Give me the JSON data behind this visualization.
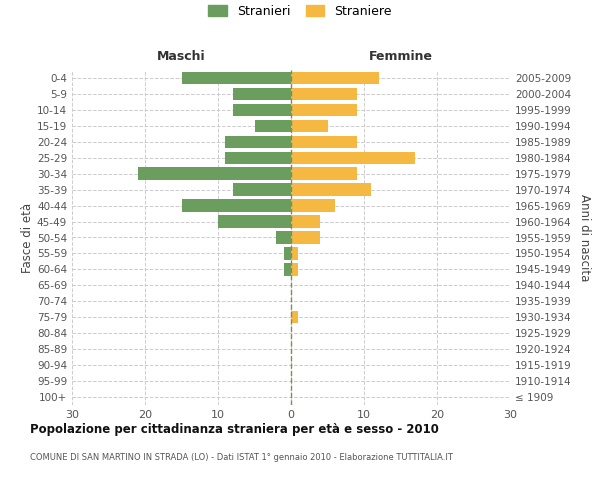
{
  "age_groups": [
    "100+",
    "95-99",
    "90-94",
    "85-89",
    "80-84",
    "75-79",
    "70-74",
    "65-69",
    "60-64",
    "55-59",
    "50-54",
    "45-49",
    "40-44",
    "35-39",
    "30-34",
    "25-29",
    "20-24",
    "15-19",
    "10-14",
    "5-9",
    "0-4"
  ],
  "birth_years": [
    "≤ 1909",
    "1910-1914",
    "1915-1919",
    "1920-1924",
    "1925-1929",
    "1930-1934",
    "1935-1939",
    "1940-1944",
    "1945-1949",
    "1950-1954",
    "1955-1959",
    "1960-1964",
    "1965-1969",
    "1970-1974",
    "1975-1979",
    "1980-1984",
    "1985-1989",
    "1990-1994",
    "1995-1999",
    "2000-2004",
    "2005-2009"
  ],
  "maschi": [
    0,
    0,
    0,
    0,
    0,
    0,
    0,
    0,
    1,
    1,
    2,
    10,
    15,
    8,
    21,
    9,
    9,
    5,
    8,
    8,
    15
  ],
  "femmine": [
    0,
    0,
    0,
    0,
    0,
    1,
    0,
    0,
    1,
    1,
    4,
    4,
    6,
    11,
    9,
    17,
    9,
    5,
    9,
    9,
    12
  ],
  "male_color": "#6b9e5e",
  "female_color": "#f5b942",
  "background_color": "#ffffff",
  "grid_color": "#cccccc",
  "title": "Popolazione per cittadinanza straniera per età e sesso - 2010",
  "subtitle": "COMUNE DI SAN MARTINO IN STRADA (LO) - Dati ISTAT 1° gennaio 2010 - Elaborazione TUTTITALIA.IT",
  "xlabel_maschi": "Maschi",
  "xlabel_femmine": "Femmine",
  "ylabel_left": "Fasce di età",
  "ylabel_right": "Anni di nascita",
  "legend_maschi": "Stranieri",
  "legend_femmine": "Straniere",
  "xlim": 30
}
